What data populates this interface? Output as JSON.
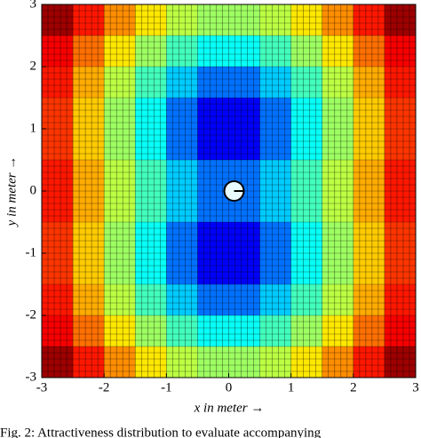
{
  "chart_data": {
    "type": "heatmap",
    "x_label": "x in meter →",
    "y_label": "y in meter →",
    "caption": "Fig. 2: Attractiveness distribution to evaluate accompanying",
    "xlim": [
      -3,
      3
    ],
    "ylim": [
      -3,
      3
    ],
    "xticks": [
      -3,
      -2,
      -1,
      0,
      1,
      2,
      3
    ],
    "yticks": [
      -3,
      -2,
      -1,
      0,
      1,
      2,
      3
    ],
    "colormap": "jet",
    "clim": [
      0,
      3.4
    ],
    "grid": true,
    "z": [
      [
        3.3,
        2.9,
        2.5,
        2.2,
        1.9,
        1.8,
        1.8,
        1.9,
        2.2,
        2.5,
        2.9,
        3.3
      ],
      [
        3.0,
        2.6,
        2.2,
        1.8,
        1.5,
        1.3,
        1.3,
        1.5,
        1.8,
        2.2,
        2.6,
        3.0
      ],
      [
        2.9,
        2.4,
        1.9,
        1.5,
        1.1,
        0.8,
        0.8,
        1.1,
        1.5,
        1.9,
        2.4,
        2.9
      ],
      [
        2.8,
        2.3,
        1.8,
        1.3,
        0.8,
        0.4,
        0.4,
        0.8,
        1.3,
        1.8,
        2.3,
        2.8
      ],
      [
        2.8,
        2.3,
        1.8,
        1.3,
        0.8,
        0.4,
        0.4,
        0.8,
        1.3,
        1.8,
        2.3,
        2.8
      ],
      [
        2.9,
        2.4,
        1.9,
        1.5,
        1.1,
        0.8,
        0.8,
        1.1,
        1.5,
        1.9,
        2.4,
        2.9
      ],
      [
        2.9,
        2.4,
        1.9,
        1.5,
        1.1,
        0.8,
        0.8,
        1.1,
        1.5,
        1.9,
        2.4,
        2.9
      ],
      [
        2.8,
        2.3,
        1.8,
        1.3,
        0.8,
        0.4,
        0.4,
        0.8,
        1.3,
        1.8,
        2.3,
        2.8
      ],
      [
        2.8,
        2.3,
        1.8,
        1.3,
        0.8,
        0.4,
        0.4,
        0.8,
        1.3,
        1.8,
        2.3,
        2.8
      ],
      [
        2.9,
        2.4,
        1.9,
        1.5,
        1.1,
        0.8,
        0.8,
        1.1,
        1.5,
        1.9,
        2.4,
        2.9
      ],
      [
        3.0,
        2.6,
        2.2,
        1.8,
        1.5,
        1.3,
        1.3,
        1.5,
        1.8,
        2.2,
        2.6,
        3.0
      ],
      [
        3.3,
        2.9,
        2.5,
        2.2,
        1.9,
        1.8,
        1.8,
        1.9,
        2.2,
        2.5,
        2.9,
        3.3
      ]
    ]
  }
}
